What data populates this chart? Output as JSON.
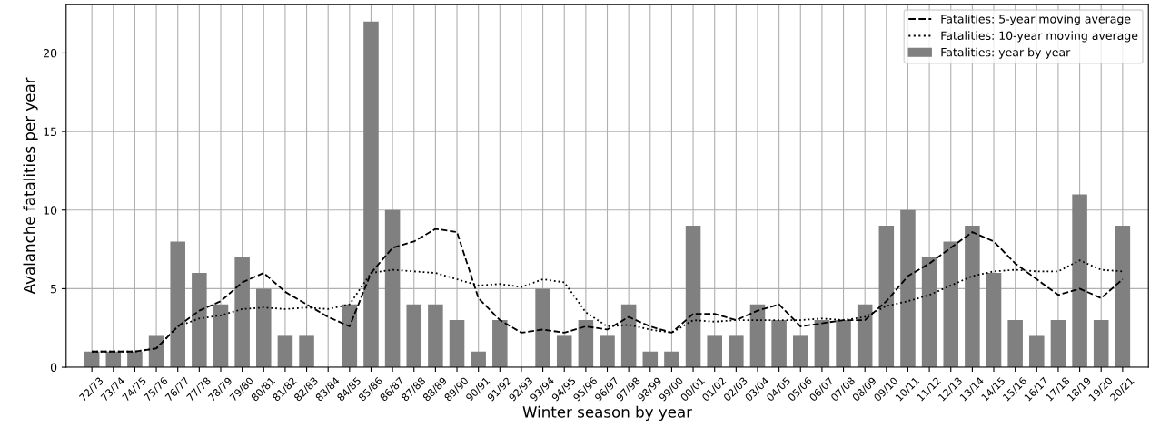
{
  "chart_data": {
    "type": "bar",
    "xlabel": "Winter season by year",
    "ylabel": "Avalanche fatalities per year",
    "categories": [
      "72/73",
      "73/74",
      "74/75",
      "75/76",
      "76/77",
      "77/78",
      "78/79",
      "79/80",
      "80/81",
      "81/82",
      "82/83",
      "83/84",
      "84/85",
      "85/86",
      "86/87",
      "87/88",
      "88/89",
      "89/90",
      "90/91",
      "91/92",
      "92/93",
      "93/94",
      "94/95",
      "95/96",
      "96/97",
      "97/98",
      "98/99",
      "99/00",
      "00/01",
      "01/02",
      "02/03",
      "03/04",
      "04/05",
      "05/06",
      "06/07",
      "07/08",
      "08/09",
      "09/10",
      "10/11",
      "11/12",
      "12/13",
      "13/14",
      "14/15",
      "15/16",
      "16/17",
      "17/18",
      "18/19",
      "19/20",
      "20/21"
    ],
    "series": [
      {
        "name": "Fatalities: 5-year moving average",
        "type": "line",
        "line_style": "dashed",
        "color": "#000000",
        "values": [
          1,
          1,
          1,
          1.2,
          2.6,
          3.6,
          4.2,
          5.4,
          6,
          4.8,
          4,
          3.2,
          2.6,
          6,
          7.6,
          8,
          8.8,
          8.6,
          4.4,
          3,
          2.2,
          2.4,
          2.2,
          2.6,
          2.4,
          3.2,
          2.6,
          2.2,
          3.4,
          3.4,
          3,
          3.6,
          4,
          2.6,
          2.8,
          3,
          3,
          4.2,
          5.8,
          6.6,
          7.6,
          8.6,
          8,
          6.6,
          5.6,
          4.6,
          5,
          4.4,
          5.6
        ]
      },
      {
        "name": "Fatalities: 10-year moving average",
        "type": "line",
        "line_style": "dotted",
        "color": "#000000",
        "values": [
          1,
          1,
          1,
          1.2,
          2.6,
          3.1,
          3.3,
          3.7,
          3.8,
          3.7,
          3.8,
          3.7,
          4,
          6,
          6.2,
          6.1,
          6,
          5.6,
          5.2,
          5.3,
          5.1,
          5.6,
          5.4,
          3.5,
          2.6,
          2.7,
          2.4,
          2.2,
          3,
          2.9,
          3,
          3,
          3,
          3,
          3.1,
          3,
          3.2,
          3.9,
          4.2,
          4.6,
          5.2,
          5.8,
          6.1,
          6.2,
          6.1,
          6.1,
          6.8,
          6.2,
          6.1
        ]
      },
      {
        "name": "Fatalities: year by year",
        "color": "#808080",
        "values": [
          1,
          1,
          1,
          2,
          8,
          6,
          4,
          7,
          5,
          2,
          2,
          0,
          4,
          22,
          10,
          4,
          4,
          3,
          1,
          3,
          0,
          5,
          2,
          3,
          2,
          4,
          1,
          1,
          9,
          2,
          2,
          4,
          3,
          2,
          3,
          3,
          4,
          9,
          10,
          7,
          8,
          9,
          6,
          3,
          2,
          3,
          11,
          3,
          9
        ]
      }
    ],
    "ylim": [
      0,
      23.1
    ],
    "yticks": [
      0,
      5,
      10,
      15,
      20
    ],
    "grid": true,
    "legend": "top right"
  }
}
